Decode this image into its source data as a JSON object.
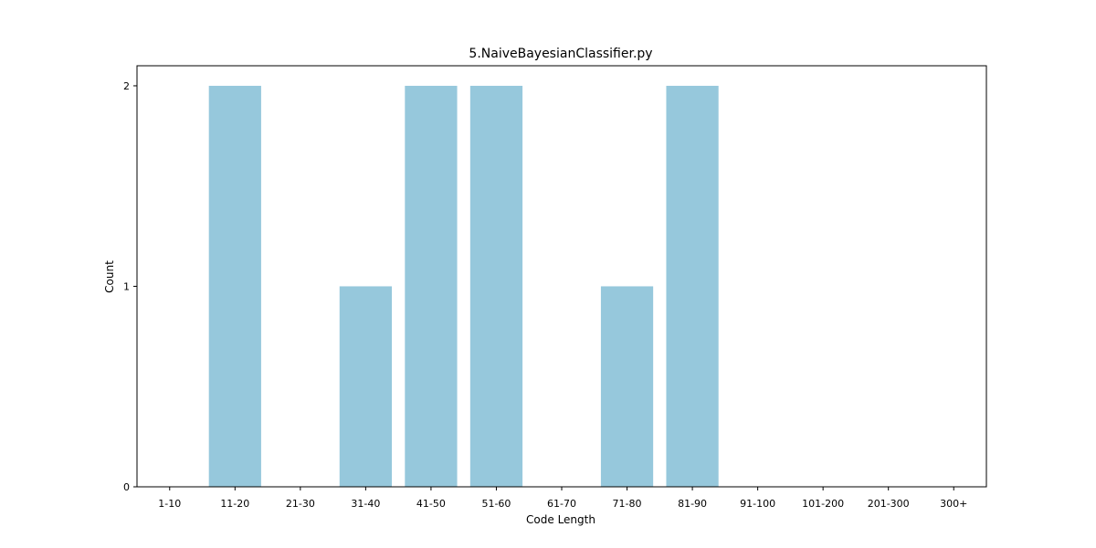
{
  "chart_data": {
    "type": "bar",
    "title": "5.NaiveBayesianClassifier.py",
    "xlabel": "Code Length",
    "ylabel": "Count",
    "categories": [
      "1-10",
      "11-20",
      "21-30",
      "31-40",
      "41-50",
      "51-60",
      "61-70",
      "71-80",
      "81-90",
      "91-100",
      "101-200",
      "201-300",
      "300+"
    ],
    "values": [
      0,
      2,
      0,
      1,
      2,
      2,
      0,
      1,
      2,
      0,
      0,
      0,
      0
    ],
    "ylim": [
      0,
      2.1
    ],
    "yticks": [
      0,
      1,
      2
    ],
    "bar_color": "#96c8dc",
    "grid": false,
    "legend": false
  }
}
